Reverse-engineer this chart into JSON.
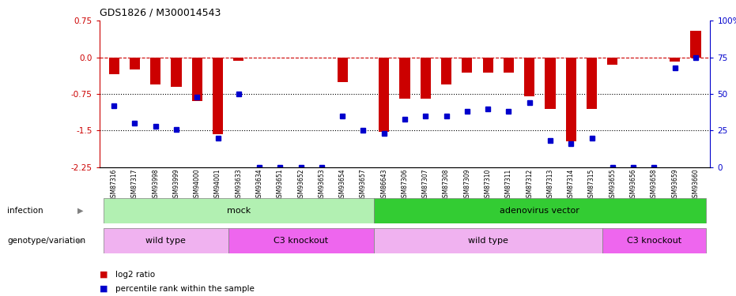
{
  "title": "GDS1826 / M300014543",
  "samples": [
    "GSM87316",
    "GSM87317",
    "GSM93998",
    "GSM93999",
    "GSM94000",
    "GSM94001",
    "GSM93633",
    "GSM93634",
    "GSM93651",
    "GSM93652",
    "GSM93653",
    "GSM93654",
    "GSM93657",
    "GSM86643",
    "GSM87306",
    "GSM87307",
    "GSM87308",
    "GSM87309",
    "GSM87310",
    "GSM87311",
    "GSM87312",
    "GSM87313",
    "GSM87314",
    "GSM87315",
    "GSM93655",
    "GSM93656",
    "GSM93658",
    "GSM93659",
    "GSM93660"
  ],
  "log2_ratio": [
    -0.35,
    -0.25,
    -0.55,
    -0.6,
    -0.9,
    -1.58,
    -0.07,
    0.0,
    0.0,
    0.0,
    0.0,
    -0.5,
    0.0,
    -1.52,
    -0.85,
    -0.85,
    -0.55,
    -0.32,
    -0.32,
    -0.32,
    -0.8,
    -1.05,
    -1.72,
    -1.05,
    -0.15,
    0.0,
    0.0,
    -0.08,
    0.55
  ],
  "percentile_pct": [
    42,
    30,
    28,
    26,
    48,
    20,
    50,
    0,
    0,
    0,
    0,
    35,
    25,
    23,
    33,
    35,
    35,
    38,
    40,
    38,
    44,
    18,
    16,
    20,
    0,
    0,
    0,
    68,
    75
  ],
  "infection_groups": [
    {
      "label": "mock",
      "start": 0,
      "end": 13,
      "color": "#b2f0b2"
    },
    {
      "label": "adenovirus vector",
      "start": 13,
      "end": 29,
      "color": "#33cc33"
    }
  ],
  "genotype_groups": [
    {
      "label": "wild type",
      "start": 0,
      "end": 6,
      "color": "#f0b2f0"
    },
    {
      "label": "C3 knockout",
      "start": 6,
      "end": 13,
      "color": "#ee66ee"
    },
    {
      "label": "wild type",
      "start": 13,
      "end": 24,
      "color": "#f0b2f0"
    },
    {
      "label": "C3 knockout",
      "start": 24,
      "end": 29,
      "color": "#ee66ee"
    }
  ],
  "bar_color": "#CC0000",
  "dot_color": "#0000CC",
  "ref_line_color": "#CC0000",
  "ylim": [
    -2.25,
    0.75
  ],
  "y_ticks_left": [
    0.75,
    0.0,
    -0.75,
    -1.5,
    -2.25
  ],
  "y_ticks_right_pct": [
    100,
    75,
    50,
    25,
    0
  ],
  "right_axis_color": "#0000CC"
}
